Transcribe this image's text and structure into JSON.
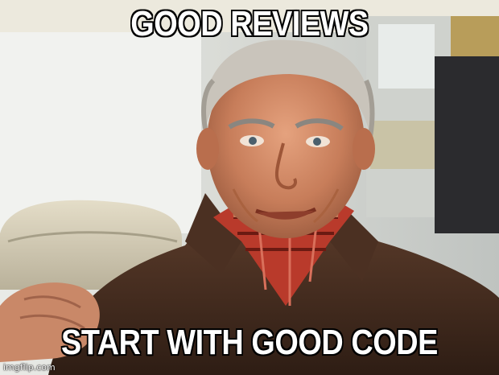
{
  "meme": {
    "top_text": "GOOD REVIEWS",
    "bottom_text": "START WITH GOOD CODE",
    "watermark": "imgflip.com"
  }
}
